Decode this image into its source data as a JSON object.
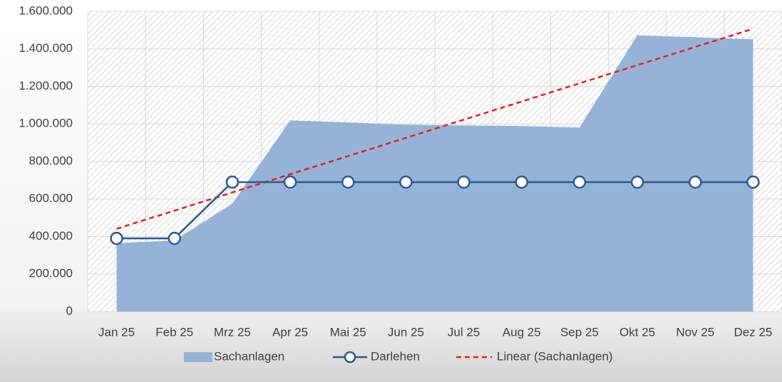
{
  "chart_data": {
    "type": "area-line",
    "categories": [
      "Jan 25",
      "Feb 25",
      "Mrz 25",
      "Apr 25",
      "Mai 25",
      "Jun 25",
      "Jul 25",
      "Aug 25",
      "Sep 25",
      "Okt 25",
      "Nov 25",
      "Dez 25"
    ],
    "series": [
      {
        "name": "Sachanlagen",
        "type": "area",
        "color": "#95b3d7",
        "values": [
          365000,
          379000,
          576000,
          1019000,
          1008000,
          996000,
          992000,
          989000,
          981000,
          1473000,
          1462000,
          1451000
        ]
      },
      {
        "name": "Darlehen",
        "type": "line",
        "color": "#2f5a8c",
        "values": [
          390000,
          390000,
          690000,
          690000,
          690000,
          690000,
          690000,
          690000,
          690000,
          690000,
          690000,
          690000
        ]
      }
    ],
    "trendline": {
      "name": "Linear (Sachanlagen)",
      "kind": "linear",
      "color": "#e41e1e"
    },
    "ylim": [
      0,
      1600000
    ],
    "yticks": [
      0,
      {
        "value": 200000,
        "label": "200.000"
      },
      {
        "value": 400000,
        "label": "400.000"
      },
      {
        "value": 600000,
        "label": "600.000"
      },
      {
        "value": 800000,
        "label": "800.000"
      },
      {
        "value": 1000000,
        "label": "1.000.000"
      },
      {
        "value": 1200000,
        "label": "1.200.000"
      },
      {
        "value": 1400000,
        "label": "1.400.000"
      },
      {
        "value": 1600000,
        "label": "1.600.000"
      }
    ],
    "grid": true,
    "legend": "bottom"
  }
}
